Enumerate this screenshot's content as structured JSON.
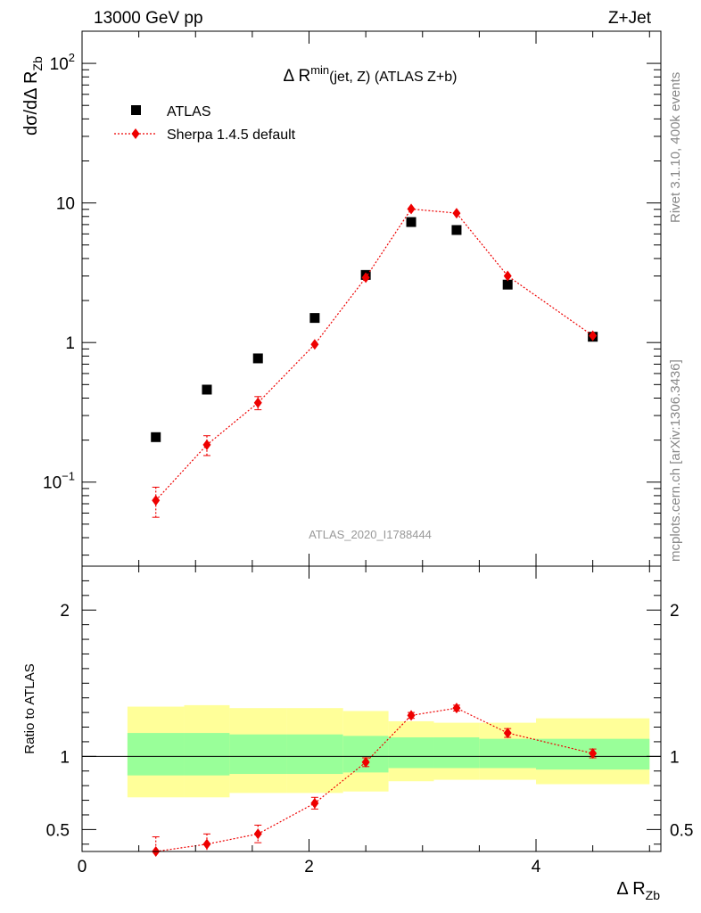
{
  "header": {
    "left": "13000 GeV pp",
    "right": "Z+Jet"
  },
  "side": {
    "rivet": "Rivet 3.1.10,  400k events",
    "mcplots": "mcplots.cern.ch [arXiv:1306.3436]"
  },
  "colors": {
    "data": "#000000",
    "mc": "#ee0000",
    "band_inner": "#99ff99",
    "band_outer": "#ffff99"
  },
  "chart_data": {
    "type": "scatter",
    "title_main": "Δ R",
    "title_sup": "min",
    "title_sub": "(jet, Z) (ATLAS Z+b)",
    "watermark": "ATLAS_2020_I1788444",
    "ylabel_main": "dσ/dΔ R",
    "ylabel_sub": "Zb",
    "xlabel_main": "Δ R",
    "xlabel_sub": "Zb",
    "ratio_ylabel": "Ratio to ATLAS",
    "xlim": [
      0,
      5.1
    ],
    "ylim_main": [
      0.025,
      170
    ],
    "ylim_ratio": [
      0.35,
      2.3
    ],
    "x_ticks": [
      0,
      2,
      4
    ],
    "x_tick_labels": [
      "0",
      "2",
      "4"
    ],
    "y_ticks_main": [
      0.1,
      1,
      10,
      100
    ],
    "y_tick_labels_main": [
      {
        "base": "10",
        "exp": "−1"
      },
      {
        "base": "1",
        "exp": ""
      },
      {
        "base": "10",
        "exp": ""
      },
      {
        "base": "10",
        "exp": "2"
      }
    ],
    "y_ticks_ratio": [
      0.5,
      1,
      2
    ],
    "y_tick_labels_ratio": [
      "0.5",
      "1",
      "2"
    ],
    "legend": [
      {
        "label": "ATLAS",
        "marker": "square"
      },
      {
        "label": "Sherpa 1.4.5 default",
        "marker": "diamond"
      }
    ],
    "bins": [
      [
        0.4,
        0.9
      ],
      [
        0.9,
        1.3
      ],
      [
        1.3,
        1.8
      ],
      [
        1.8,
        2.3
      ],
      [
        2.3,
        2.7
      ],
      [
        2.7,
        3.1
      ],
      [
        3.1,
        3.5
      ],
      [
        3.5,
        4.0
      ],
      [
        4.0,
        5.0
      ]
    ],
    "series": [
      {
        "name": "ATLAS",
        "x": [
          0.65,
          1.1,
          1.55,
          2.05,
          2.5,
          2.9,
          3.3,
          3.75,
          4.5
        ],
        "y": [
          0.21,
          0.46,
          0.77,
          1.5,
          3.05,
          7.3,
          6.4,
          2.6,
          1.1
        ]
      },
      {
        "name": "Sherpa 1.4.5 default",
        "x": [
          0.65,
          1.1,
          1.55,
          2.05,
          2.5,
          2.9,
          3.3,
          3.75,
          4.5
        ],
        "y": [
          0.074,
          0.185,
          0.37,
          0.97,
          2.92,
          9.05,
          8.45,
          3.0,
          1.12
        ],
        "yerr": [
          0.018,
          0.03,
          0.04,
          0.05,
          0.12,
          0.3,
          0.3,
          0.12,
          0.05
        ],
        "ratio": [
          0.35,
          0.4,
          0.47,
          0.68,
          0.96,
          1.28,
          1.33,
          1.16,
          1.02
        ],
        "ratio_err": [
          0.1,
          0.07,
          0.06,
          0.04,
          0.03,
          0.02,
          0.02,
          0.03,
          0.03
        ]
      }
    ],
    "band_inner": {
      "lo": [
        0.87,
        0.87,
        0.88,
        0.88,
        0.89,
        0.92,
        0.92,
        0.92,
        0.91
      ],
      "hi": [
        1.16,
        1.16,
        1.15,
        1.15,
        1.14,
        1.13,
        1.13,
        1.12,
        1.12
      ]
    },
    "band_outer": {
      "lo": [
        0.72,
        0.72,
        0.75,
        0.75,
        0.76,
        0.83,
        0.84,
        0.84,
        0.81
      ],
      "hi": [
        1.34,
        1.35,
        1.33,
        1.33,
        1.31,
        1.24,
        1.23,
        1.23,
        1.26
      ]
    }
  }
}
